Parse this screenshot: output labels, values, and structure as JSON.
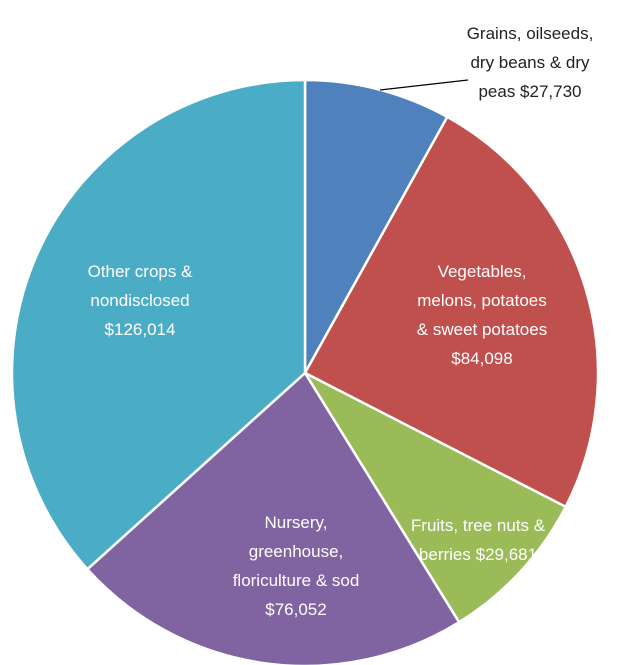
{
  "chart_data": {
    "type": "pie",
    "categories": [
      "Grains, oilseeds, dry beans & dry",
      "Vegetables, melons, potatoes & sweet potatoes",
      "Fruits, tree nuts & berries",
      "Nursery, greenhouse, floriculture & sod",
      "Other crops & nondisclosed"
    ],
    "label_prefix_last_line": null,
    "values": [
      27730,
      84098,
      29681,
      76052,
      126014
    ],
    "value_labels": [
      "peas $27,730",
      "$84,098",
      "$29,681",
      "$76,052",
      "$126,014"
    ],
    "colors": [
      "#4f81bd",
      "#c0504d",
      "#9bbb59",
      "#8064a2",
      "#4bacc6"
    ]
  }
}
